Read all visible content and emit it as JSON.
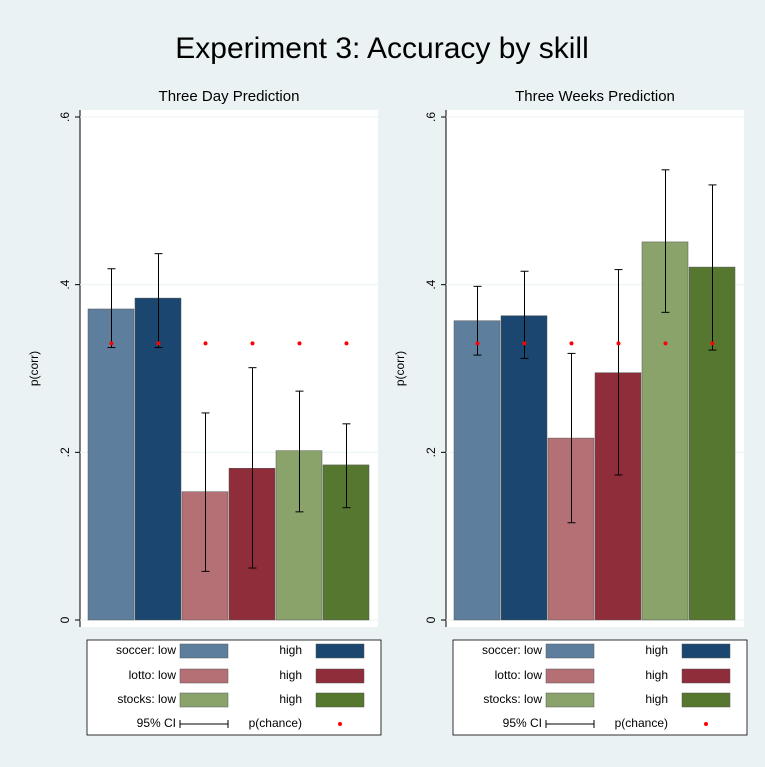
{
  "title": "Experiment 3: Accuracy by skill",
  "chart_data": [
    {
      "type": "bar",
      "title": "Three Day Prediction",
      "ylabel": "p(corr)",
      "ylim": [
        0,
        0.6
      ],
      "yticks": [
        0,
        {
          "value": 0.2,
          "label": ".2"
        },
        {
          "value": 0.4,
          "label": ".4"
        },
        {
          "value": 0.6,
          "label": ".6"
        }
      ],
      "grid": true,
      "ci_label": "95% CI",
      "chance_label": "p(chance)",
      "chance_color": "#ff0000",
      "series": [
        {
          "name": "soccer: low",
          "color": "#5e7e9e",
          "values": [
            0.371
          ],
          "ci_low": [
            0.325
          ],
          "ci_high": [
            0.419
          ],
          "chance": [
            0.33
          ]
        },
        {
          "name": "high",
          "color": "#1a4670",
          "values": [
            0.384
          ],
          "ci_low": [
            0.325
          ],
          "ci_high": [
            0.437
          ],
          "chance": [
            0.33
          ]
        },
        {
          "name": "lotto: low",
          "color": "#b57075",
          "values": [
            0.153
          ],
          "ci_low": [
            0.058
          ],
          "ci_high": [
            0.247
          ],
          "chance": [
            0.33
          ]
        },
        {
          "name": "high",
          "color": "#902d3b",
          "values": [
            0.181
          ],
          "ci_low": [
            0.062
          ],
          "ci_high": [
            0.301
          ],
          "chance": [
            0.33
          ]
        },
        {
          "name": "stocks: low",
          "color": "#8aa36b",
          "values": [
            0.202
          ],
          "ci_low": [
            0.129
          ],
          "ci_high": [
            0.273
          ],
          "chance": [
            0.33
          ]
        },
        {
          "name": "high",
          "color": "#56772f",
          "values": [
            0.185
          ],
          "ci_low": [
            0.134
          ],
          "ci_high": [
            0.234
          ],
          "chance": [
            0.33
          ]
        }
      ]
    },
    {
      "type": "bar",
      "title": "Three Weeks Prediction",
      "ylabel": "p(corr)",
      "ylim": [
        0,
        0.6
      ],
      "yticks": [
        0,
        {
          "value": 0.2,
          "label": ".2"
        },
        {
          "value": 0.4,
          "label": ".4"
        },
        {
          "value": 0.6,
          "label": ".6"
        }
      ],
      "grid": true,
      "ci_label": "95% CI",
      "chance_label": "p(chance)",
      "chance_color": "#ff0000",
      "series": [
        {
          "name": "soccer: low",
          "color": "#5e7e9e",
          "values": [
            0.357
          ],
          "ci_low": [
            0.316
          ],
          "ci_high": [
            0.398
          ],
          "chance": [
            0.33
          ]
        },
        {
          "name": "high",
          "color": "#1a4670",
          "values": [
            0.363
          ],
          "ci_low": [
            0.312
          ],
          "ci_high": [
            0.416
          ],
          "chance": [
            0.33
          ]
        },
        {
          "name": "lotto: low",
          "color": "#b57075",
          "values": [
            0.217
          ],
          "ci_low": [
            0.116
          ],
          "ci_high": [
            0.318
          ],
          "chance": [
            0.33
          ]
        },
        {
          "name": "high",
          "color": "#902d3b",
          "values": [
            0.295
          ],
          "ci_low": [
            0.173
          ],
          "ci_high": [
            0.418
          ],
          "chance": [
            0.33
          ]
        },
        {
          "name": "stocks: low",
          "color": "#8aa36b",
          "values": [
            0.451
          ],
          "ci_low": [
            0.367
          ],
          "ci_high": [
            0.537
          ],
          "chance": [
            0.33
          ]
        },
        {
          "name": "high",
          "color": "#56772f",
          "values": [
            0.421
          ],
          "ci_low": [
            0.322
          ],
          "ci_high": [
            0.519
          ],
          "chance": [
            0.33
          ]
        }
      ]
    }
  ]
}
